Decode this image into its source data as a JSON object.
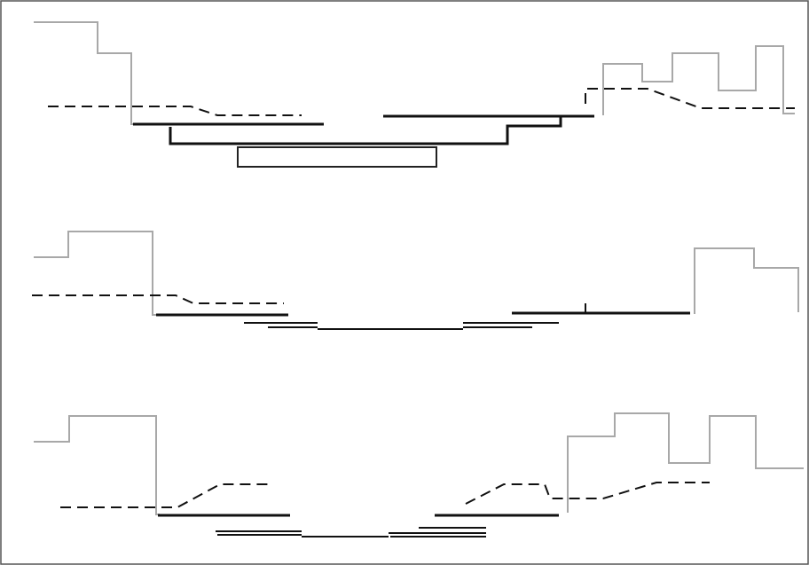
{
  "diagram": {
    "panels": [
      {
        "id": "top",
        "elements": [
          "gray-profile",
          "dashed-profile",
          "solid-profile",
          "rectangle-box"
        ]
      },
      {
        "id": "middle",
        "elements": [
          "gray-profile",
          "dashed-profile",
          "solid-profile"
        ]
      },
      {
        "id": "bottom",
        "elements": [
          "gray-profile",
          "dashed-profile",
          "solid-profile"
        ]
      }
    ]
  }
}
